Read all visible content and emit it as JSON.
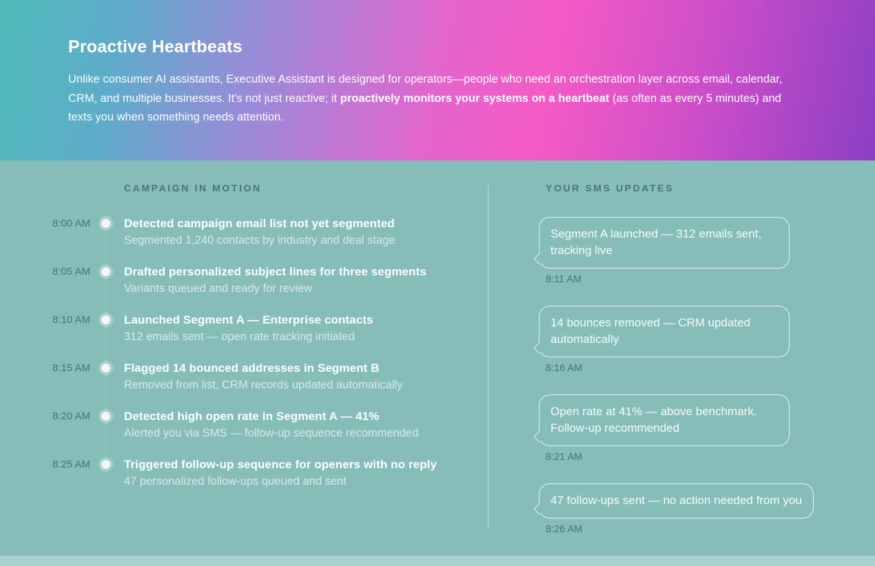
{
  "hero": {
    "title": "Proactive Heartbeats",
    "paragraph_pre": "Unlike consumer AI assistants, Executive Assistant is designed for operators—people who need an orchestration layer across email, calendar, CRM, and multiple businesses. It's not just reactive; it ",
    "paragraph_bold": "proactively monitors your systems on a heartbeat",
    "paragraph_post": " (as often as every 5 minutes) and texts you when something needs attention."
  },
  "timeline": {
    "heading": "CAMPAIGN IN MOTION",
    "items": [
      {
        "time": "8:00 AM",
        "title": "Detected campaign email list not yet segmented",
        "subtitle": "Segmented 1,240 contacts by industry and deal stage"
      },
      {
        "time": "8:05 AM",
        "title": "Drafted personalized subject lines for three segments",
        "subtitle": "Variants queued and ready for review"
      },
      {
        "time": "8:10 AM",
        "title": "Launched Segment A — Enterprise contacts",
        "subtitle": "312 emails sent — open rate tracking initiated"
      },
      {
        "time": "8:15 AM",
        "title": "Flagged 14 bounced addresses in Segment B",
        "subtitle": "Removed from list, CRM records updated automatically"
      },
      {
        "time": "8:20 AM",
        "title": "Detected high open rate in Segment A — 41%",
        "subtitle": "Alerted you via SMS — follow-up sequence recommended"
      },
      {
        "time": "8:25 AM",
        "title": "Triggered follow-up sequence for openers with no reply",
        "subtitle": "47 personalized follow-ups queued and sent"
      }
    ]
  },
  "sms": {
    "heading": "YOUR SMS UPDATES",
    "messages": [
      {
        "text": "Segment A launched — 312 emails sent, tracking live",
        "time": "8:11 AM"
      },
      {
        "text": "14 bounces removed — CRM updated automatically",
        "time": "8:16 AM"
      },
      {
        "text": "Open rate at 41% — above benchmark. Follow-up recommended",
        "time": "8:21 AM"
      },
      {
        "text": "47 follow-ups sent — no action needed from you",
        "time": "8:26 AM"
      }
    ]
  },
  "colors": {
    "hero_gradient_start": "#4fbcba",
    "hero_gradient_pink": "#f55bc5",
    "hero_gradient_end": "#8c3fc3",
    "section_background": "#86bdb8",
    "bottom_strip": "#a9d2cc",
    "muted_teal_text": "#49756f"
  }
}
